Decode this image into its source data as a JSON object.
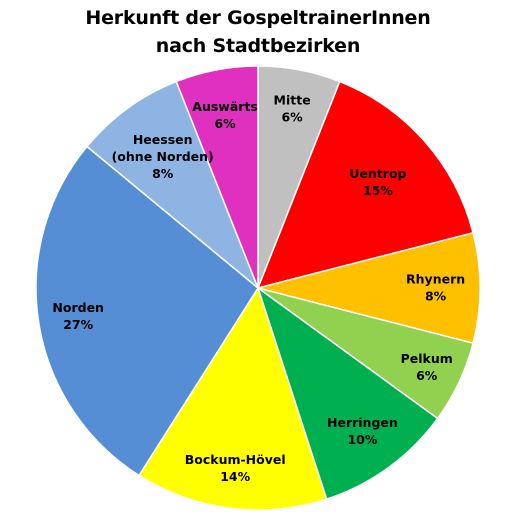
{
  "chart_data": {
    "type": "pie",
    "title_lines": [
      "Herkunft der GospeltrainerInnen",
      "nach Stadtbezirken"
    ],
    "slices": [
      {
        "name": "Mitte",
        "label_lines": [
          "Mitte"
        ],
        "value": 6,
        "value_label": "6%",
        "color": "#c0c0c0"
      },
      {
        "name": "Uentrop",
        "label_lines": [
          "Uentrop"
        ],
        "value": 15,
        "value_label": "15%",
        "color": "#ff0000"
      },
      {
        "name": "Rhynern",
        "label_lines": [
          "Rhynern"
        ],
        "value": 8,
        "value_label": "8%",
        "color": "#ffc000"
      },
      {
        "name": "Pelkum",
        "label_lines": [
          "Pelkum"
        ],
        "value": 6,
        "value_label": "6%",
        "color": "#92d050"
      },
      {
        "name": "Herringen",
        "label_lines": [
          "Herringen"
        ],
        "value": 10,
        "value_label": "10%",
        "color": "#00b050"
      },
      {
        "name": "Bockum-Hövel",
        "label_lines": [
          "Bockum-Hövel"
        ],
        "value": 14,
        "value_label": "14%",
        "color": "#ffff00"
      },
      {
        "name": "Norden",
        "label_lines": [
          "Norden"
        ],
        "value": 27,
        "value_label": "27%",
        "color": "#558ed5"
      },
      {
        "name": "Heessen (ohne Norden)",
        "label_lines": [
          "Heessen",
          "(ohne Norden)"
        ],
        "value": 8,
        "value_label": "8%",
        "color": "#8eb4e3"
      },
      {
        "name": "Auswärts",
        "label_lines": [
          "Auswärts"
        ],
        "value": 6,
        "value_label": "6%",
        "color": "#e030c0"
      }
    ],
    "start_angle_deg": 0,
    "direction": "clockwise",
    "legend": "none",
    "slice_border_color": "#ffffff"
  }
}
